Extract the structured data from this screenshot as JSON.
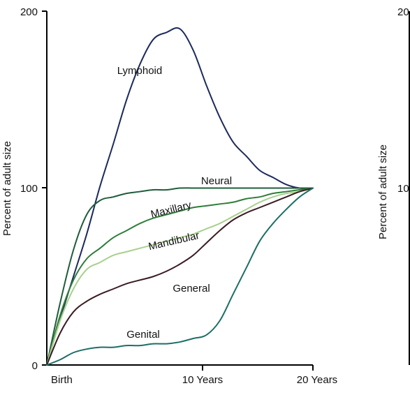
{
  "chart_data": [
    {
      "type": "line",
      "title": "",
      "xlabel": "",
      "ylabel": "Percent of adult size",
      "x_tick_labels": [
        "Birth",
        "10 Years",
        "20 Years"
      ],
      "x_ticks": [
        0,
        10,
        20
      ],
      "xlim": [
        0,
        20
      ],
      "y_tick_labels": [
        "0",
        "100",
        "200"
      ],
      "y_ticks": [
        0,
        100,
        200
      ],
      "ylim": [
        0,
        200
      ],
      "grid": false,
      "legend": "none",
      "series": [
        {
          "name": "Lymphoid",
          "color": "#1c2a5c",
          "points": [
            [
              0,
              0
            ],
            [
              1,
              26
            ],
            [
              2,
              50
            ],
            [
              3,
              74
            ],
            [
              4,
              101
            ],
            [
              5,
              125
            ],
            [
              6,
              150
            ],
            [
              7,
              170
            ],
            [
              8,
              184
            ],
            [
              9,
              188
            ],
            [
              10,
              190
            ],
            [
              11,
              178
            ],
            [
              12,
              158
            ],
            [
              13,
              140
            ],
            [
              14,
              126
            ],
            [
              15,
              118
            ],
            [
              16,
              110
            ],
            [
              17,
              106
            ],
            [
              18,
              102
            ],
            [
              19,
              100
            ],
            [
              20,
              100
            ]
          ]
        },
        {
          "name": "Neural",
          "color": "#1f5c3c",
          "points": [
            [
              0,
              0
            ],
            [
              1,
              35
            ],
            [
              2,
              65
            ],
            [
              3,
              85
            ],
            [
              4,
              93
            ],
            [
              5,
              95
            ],
            [
              6,
              97
            ],
            [
              7,
              98
            ],
            [
              8,
              99
            ],
            [
              9,
              99
            ],
            [
              10,
              100
            ],
            [
              11,
              100
            ],
            [
              12,
              100
            ],
            [
              13,
              100
            ],
            [
              14,
              100
            ],
            [
              15,
              100
            ],
            [
              16,
              100
            ],
            [
              17,
              100
            ],
            [
              18,
              100
            ],
            [
              19,
              100
            ],
            [
              20,
              100
            ]
          ]
        },
        {
          "name": "Maxillary",
          "color": "#2f7d3a",
          "points": [
            [
              0,
              0
            ],
            [
              1,
              28
            ],
            [
              2,
              48
            ],
            [
              3,
              60
            ],
            [
              4,
              66
            ],
            [
              5,
              72
            ],
            [
              6,
              76
            ],
            [
              7,
              80
            ],
            [
              8,
              83
            ],
            [
              9,
              85
            ],
            [
              10,
              87
            ],
            [
              11,
              89
            ],
            [
              12,
              90
            ],
            [
              13,
              91
            ],
            [
              14,
              92
            ],
            [
              15,
              94
            ],
            [
              16,
              95
            ],
            [
              17,
              97
            ],
            [
              18,
              98
            ],
            [
              19,
              99
            ],
            [
              20,
              100
            ]
          ]
        },
        {
          "name": "Mandibular",
          "color": "#a8d08d",
          "points": [
            [
              0,
              0
            ],
            [
              1,
              25
            ],
            [
              2,
              43
            ],
            [
              3,
              54
            ],
            [
              4,
              58
            ],
            [
              5,
              62
            ],
            [
              6,
              64
            ],
            [
              7,
              66
            ],
            [
              8,
              68
            ],
            [
              9,
              70
            ],
            [
              10,
              72
            ],
            [
              11,
              74
            ],
            [
              12,
              77
            ],
            [
              13,
              80
            ],
            [
              14,
              84
            ],
            [
              15,
              88
            ],
            [
              16,
              92
            ],
            [
              17,
              95
            ],
            [
              18,
              97
            ],
            [
              19,
              98
            ],
            [
              20,
              100
            ]
          ]
        },
        {
          "name": "General",
          "color": "#3a1c22",
          "points": [
            [
              0,
              0
            ],
            [
              1,
              18
            ],
            [
              2,
              30
            ],
            [
              3,
              36
            ],
            [
              4,
              40
            ],
            [
              5,
              43
            ],
            [
              6,
              46
            ],
            [
              7,
              48
            ],
            [
              8,
              50
            ],
            [
              9,
              53
            ],
            [
              10,
              57
            ],
            [
              11,
              62
            ],
            [
              12,
              69
            ],
            [
              13,
              76
            ],
            [
              14,
              82
            ],
            [
              15,
              86
            ],
            [
              16,
              89
            ],
            [
              17,
              92
            ],
            [
              18,
              95
            ],
            [
              19,
              98
            ],
            [
              20,
              100
            ]
          ]
        },
        {
          "name": "Genital",
          "color": "#1c6e66",
          "points": [
            [
              0,
              0
            ],
            [
              1,
              3
            ],
            [
              2,
              7
            ],
            [
              3,
              9
            ],
            [
              4,
              10
            ],
            [
              5,
              10
            ],
            [
              6,
              11
            ],
            [
              7,
              11
            ],
            [
              8,
              12
            ],
            [
              9,
              12
            ],
            [
              10,
              13
            ],
            [
              11,
              15
            ],
            [
              12,
              17
            ],
            [
              13,
              25
            ],
            [
              14,
              40
            ],
            [
              15,
              55
            ],
            [
              16,
              70
            ],
            [
              17,
              80
            ],
            [
              18,
              88
            ],
            [
              19,
              95
            ],
            [
              20,
              100
            ]
          ]
        }
      ]
    },
    {
      "type": "line",
      "title": "",
      "xlabel": "",
      "ylabel": "Percent of adult size",
      "y_tick_labels": [
        "20",
        "10"
      ],
      "partial": true
    }
  ],
  "labels": {
    "Lymphoid": "Lymphoid",
    "Neural": "Neural",
    "Maxillary": "Maxillary",
    "Mandibular": "Mandibular",
    "General": "General",
    "Genital": "Genital"
  }
}
